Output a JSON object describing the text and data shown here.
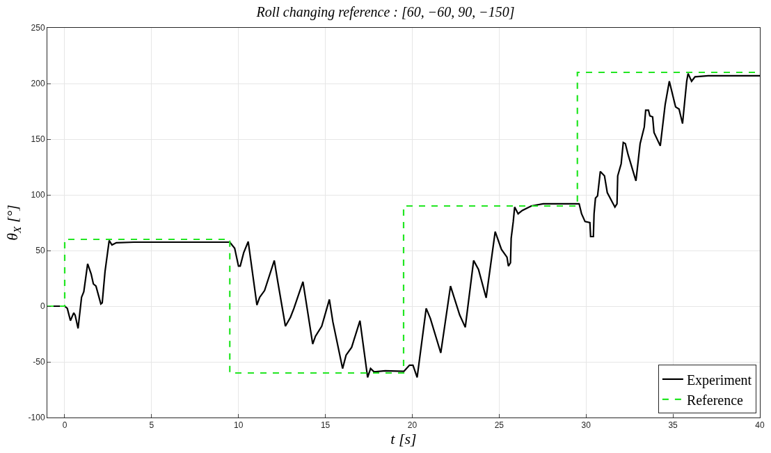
{
  "chart_data": {
    "type": "line",
    "title": "Roll changing reference : [60, −60, 90, −150]",
    "xlabel": "t [s]",
    "ylabel": "θ$_{X}$ [°]",
    "xlim": [
      -1,
      40
    ],
    "xticks": [
      0,
      5,
      10,
      15,
      20,
      25,
      30,
      35,
      40
    ],
    "ylim": [
      -100,
      250
    ],
    "yticks": [
      -100,
      -50,
      0,
      50,
      100,
      150,
      200,
      250
    ],
    "grid": true,
    "legend": "bottom right",
    "series": [
      {
        "name": "Experiment",
        "color": "#000000",
        "line_style": "solid",
        "x": [
          -1,
          0,
          0.15,
          0.33,
          0.52,
          0.6,
          0.77,
          0.97,
          1.1,
          1.32,
          1.52,
          1.65,
          1.8,
          2.08,
          2.16,
          2.32,
          2.56,
          2.72,
          2.97,
          4,
          9.5,
          9.78,
          10.0,
          10.1,
          10.3,
          10.56,
          11.06,
          11.22,
          11.5,
          12.06,
          12.26,
          12.7,
          12.99,
          13.19,
          13.71,
          14.27,
          14.43,
          14.79,
          15.23,
          15.43,
          15.99,
          16.19,
          16.51,
          16.99,
          17.43,
          17.6,
          17.8,
          18.44,
          19.52,
          19.84,
          20.04,
          20.28,
          20.8,
          21.04,
          21.64,
          22.2,
          22.73,
          23.05,
          23.53,
          23.81,
          24.25,
          24.77,
          25.13,
          25.45,
          25.53,
          25.65,
          25.69,
          25.81,
          25.89,
          26.09,
          26.33,
          26.85,
          27.53,
          29.6,
          29.74,
          29.94,
          30.22,
          30.26,
          30.42,
          30.46,
          30.54,
          30.66,
          30.82,
          31.06,
          31.22,
          31.54,
          31.66,
          31.78,
          31.82,
          32.02,
          32.14,
          32.26,
          32.42,
          32.87,
          33.11,
          33.35,
          33.43,
          33.59,
          33.67,
          33.83,
          33.91,
          34.27,
          34.55,
          34.79,
          35.15,
          35.35,
          35.55,
          35.79,
          35.87,
          36.07,
          36.27,
          37.03,
          40
        ],
        "values": [
          0,
          0,
          -2,
          -13,
          -6,
          -8,
          -20,
          8,
          13,
          38,
          29,
          20,
          18,
          2,
          3,
          31,
          59,
          55,
          57,
          57.5,
          57.5,
          52,
          36,
          36,
          48,
          58,
          1,
          8,
          14,
          41,
          22,
          -18,
          -10,
          -2,
          22,
          -34,
          -27,
          -18,
          6,
          -14,
          -56,
          -44,
          -37,
          -13,
          -64,
          -56,
          -59,
          -58,
          -58.5,
          -53,
          -53,
          -64,
          -2,
          -11,
          -42,
          18,
          -8,
          -19,
          41,
          33,
          7.5,
          67,
          51,
          44,
          36,
          39,
          61,
          76,
          89,
          83,
          86,
          90,
          92,
          92,
          83,
          76,
          75,
          62.5,
          62.5,
          83,
          97,
          99,
          121,
          117,
          102,
          92.5,
          89,
          92,
          117,
          128,
          147,
          146,
          136,
          112.5,
          146,
          161,
          176,
          176,
          171,
          170,
          156,
          144,
          181,
          202,
          179,
          177,
          164,
          202,
          209,
          202,
          206,
          207,
          207
        ]
      },
      {
        "name": "Reference",
        "type": "step",
        "color": "#22e622",
        "line_style": "dashed",
        "x": [
          -1,
          0,
          9.5,
          19.5,
          29.5,
          40
        ],
        "values": [
          0,
          60,
          -60,
          90,
          210,
          210
        ]
      }
    ]
  }
}
